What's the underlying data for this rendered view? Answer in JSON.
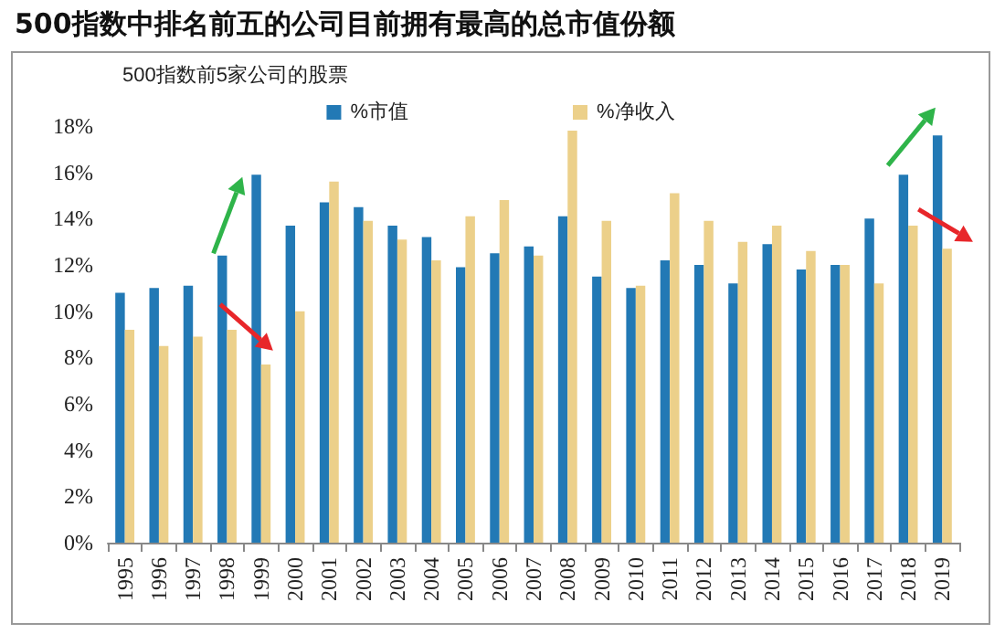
{
  "chart_data": {
    "type": "bar",
    "title": "500指数中排名前五的公司目前拥有最高的总市值份额",
    "subtitle": "500指数前5家公司的股票",
    "categories": [
      "1995",
      "1996",
      "1997",
      "1998",
      "1999",
      "2000",
      "2001",
      "2002",
      "2003",
      "2004",
      "2005",
      "2006",
      "2007",
      "2008",
      "2009",
      "2010",
      "2011",
      "2012",
      "2013",
      "2014",
      "2015",
      "2016",
      "2017",
      "2018",
      "2019"
    ],
    "series": [
      {
        "name": "%市值",
        "color": "#2279b5",
        "values": [
          10.8,
          11.0,
          11.1,
          12.4,
          15.9,
          13.7,
          14.7,
          14.5,
          13.7,
          13.2,
          11.9,
          12.5,
          12.8,
          14.1,
          11.5,
          11.0,
          12.2,
          12.0,
          11.2,
          12.9,
          11.8,
          12.0,
          14.0,
          15.9,
          17.6
        ]
      },
      {
        "name": "%净收入",
        "color": "#ecd08a",
        "values": [
          9.2,
          8.5,
          8.9,
          9.2,
          7.7,
          10.0,
          15.6,
          13.9,
          13.1,
          12.2,
          14.1,
          14.8,
          12.4,
          17.8,
          13.9,
          11.1,
          15.1,
          13.9,
          13.0,
          13.7,
          12.6,
          12.0,
          11.2,
          13.7,
          12.7
        ]
      }
    ],
    "ylim": [
      0,
      18
    ],
    "yticks": [
      {
        "value": 0,
        "label": "0%"
      },
      {
        "value": 2,
        "label": "2%"
      },
      {
        "value": 4,
        "label": "4%"
      },
      {
        "value": 6,
        "label": "6%"
      },
      {
        "value": 8,
        "label": "8%"
      },
      {
        "value": 10,
        "label": "10%"
      },
      {
        "value": 12,
        "label": "12%"
      },
      {
        "value": 14,
        "label": "14%"
      },
      {
        "value": 16,
        "label": "16%"
      },
      {
        "value": 18,
        "label": "18%"
      }
    ],
    "grid": false,
    "legend": "top"
  }
}
